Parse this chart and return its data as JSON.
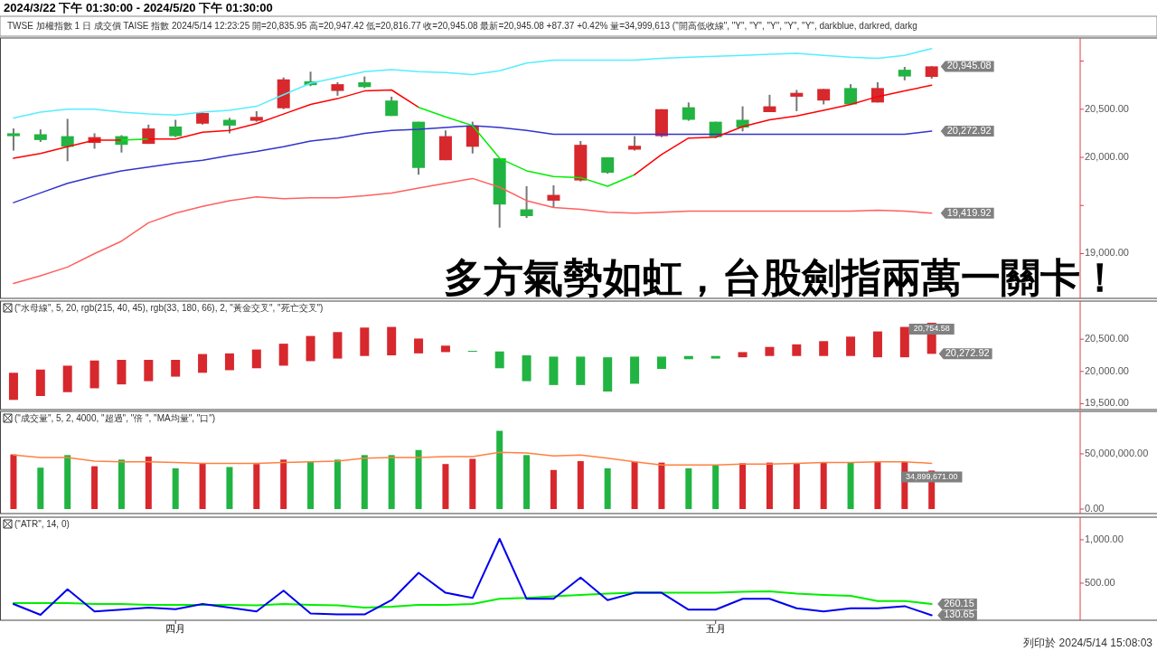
{
  "chart_data": [
    {
      "type": "candlestick",
      "title": "2024/3/22 下午 01:30:00 - 2024/5/20 下午 01:30:00",
      "subtitle": "TWSE  加權指數  1 日  成交價  TAISE  指數  2024/5/14  12:23:25  開=20,835.95  高=20,947.42  低=20,816.77  收=20,945.08  最新=20,945.08  +87.37  +0.42%  量=34,999,613  (\"開高低收線\", \"Y\", \"Y\", \"Y\", \"Y\", \"Y\", darkblue, darkred, darkg",
      "categories": [
        null,
        null,
        null,
        null,
        null,
        null,
        null,
        null,
        null,
        null,
        null,
        null,
        null,
        null,
        null,
        null,
        null,
        null,
        null,
        null,
        null,
        null,
        null,
        null,
        null,
        null,
        null,
        null,
        null,
        null,
        null,
        null,
        null,
        null,
        null,
        null,
        null,
        null,
        null,
        null
      ],
      "tick_labels": "y",
      "value_labels": [
        null,
        null,
        null,
        null,
        null,
        null,
        null,
        null,
        null,
        null,
        null,
        null,
        null,
        null,
        null,
        null,
        null,
        null,
        null,
        null,
        null,
        null,
        null,
        null,
        null,
        null,
        null,
        null,
        null,
        null,
        null,
        null,
        null,
        null,
        "20,945.08",
        null,
        null,
        null,
        null,
        null
      ],
      "ohlc": [
        [
          20250,
          20300,
          20070,
          20220
        ],
        [
          20240,
          20290,
          20160,
          20180
        ],
        [
          20220,
          20400,
          19960,
          20110
        ],
        [
          20150,
          20250,
          20090,
          20210
        ],
        [
          20220,
          20230,
          20050,
          20130
        ],
        [
          20140,
          20340,
          20140,
          20300
        ],
        [
          20320,
          20390,
          20210,
          20220
        ],
        [
          20350,
          20470,
          20340,
          20460
        ],
        [
          20390,
          20410,
          20250,
          20330
        ],
        [
          20380,
          20480,
          20370,
          20420
        ],
        [
          20510,
          20830,
          20500,
          20810
        ],
        [
          20790,
          20890,
          20740,
          20750
        ],
        [
          20690,
          20780,
          20640,
          20760
        ],
        [
          20780,
          20840,
          20720,
          20730
        ],
        [
          20590,
          20630,
          20430,
          20430
        ],
        [
          20370,
          20370,
          19820,
          19890
        ],
        [
          19970,
          20280,
          19970,
          20220
        ],
        [
          20110,
          20370,
          20040,
          20320
        ],
        [
          19990,
          19990,
          19270,
          19510
        ],
        [
          19460,
          19700,
          19370,
          19390
        ],
        [
          19550,
          19710,
          19480,
          19610
        ],
        [
          19760,
          20170,
          19750,
          20130
        ],
        [
          20000,
          20000,
          19830,
          19840
        ],
        [
          20080,
          20220,
          20070,
          20120
        ],
        [
          20220,
          20500,
          20210,
          20500
        ],
        [
          20520,
          20570,
          20380,
          20390
        ],
        [
          20370,
          20370,
          20200,
          20210
        ],
        [
          20390,
          20530,
          20270,
          20310
        ],
        [
          20470,
          20650,
          20470,
          20530
        ],
        [
          20630,
          20700,
          20480,
          20670
        ],
        [
          20590,
          20710,
          20550,
          20710
        ],
        [
          20720,
          20760,
          20550,
          20550
        ],
        [
          20570,
          20780,
          20570,
          20720
        ],
        [
          20910,
          20940,
          20800,
          20840
        ],
        [
          20835.95,
          20947.42,
          20816.77,
          20945.08
        ],
        null,
        null,
        null,
        null,
        null
      ],
      "colors": [
        "#21b442",
        "#21b442",
        "#21b442",
        "#d7282d",
        "#21b442",
        "#d7282d",
        "#21b442",
        "#d7282d",
        "#21b442",
        "#d7282d",
        "#d7282d",
        "#21b442",
        "#d7282d",
        "#21b442",
        "#21b442",
        "#21b442",
        "#d7282d",
        "#d7282d",
        "#21b442",
        "#21b442",
        "#d7282d",
        "#d7282d",
        "#21b442",
        "#d7282d",
        "#d7282d",
        "#21b442",
        "#21b442",
        "#21b442",
        "#d7282d",
        "#d7282d",
        "#d7282d",
        "#21b442",
        "#d7282d",
        "#21b442",
        "#d7282d",
        null,
        null,
        null,
        null,
        null
      ],
      "series": [
        {
          "type": "line",
          "color": "#55eeff",
          "values": [
            20410,
            20470,
            20500,
            20500,
            20470,
            20450,
            20440,
            20470,
            20490,
            20530,
            20650,
            20770,
            20830,
            20890,
            20910,
            20890,
            20880,
            20860,
            20900,
            20980,
            21010,
            21010,
            21010,
            21010,
            21030,
            21040,
            21050,
            21060,
            21070,
            21080,
            21060,
            21040,
            21030,
            21060,
            21130,
            null,
            null,
            null,
            null,
            null
          ]
        },
        {
          "type": "line",
          "color": "#3333cc",
          "values": [
            19530,
            19630,
            19730,
            19800,
            19860,
            19900,
            19940,
            19970,
            20020,
            20060,
            20110,
            20170,
            20200,
            20250,
            20280,
            20290,
            20310,
            20330,
            20310,
            20280,
            20240,
            20240,
            20240,
            20240,
            20240,
            20240,
            20240,
            20240,
            20240,
            20240,
            20240,
            20240,
            20240,
            20240,
            20272.92,
            null,
            null,
            null,
            null,
            null
          ],
          "value_labels": [
            null,
            null,
            null,
            null,
            null,
            null,
            null,
            null,
            null,
            null,
            null,
            null,
            null,
            null,
            null,
            null,
            null,
            null,
            null,
            null,
            null,
            null,
            null,
            null,
            null,
            null,
            null,
            null,
            null,
            null,
            null,
            null,
            null,
            null,
            "20,272.92",
            null,
            null,
            null,
            null,
            null
          ]
        },
        {
          "type": "line",
          "color": "#ff6060",
          "values": [
            18690,
            18770,
            18860,
            19000,
            19130,
            19320,
            19420,
            19490,
            19550,
            19590,
            19570,
            19580,
            19580,
            19600,
            19630,
            19680,
            19730,
            19780,
            19690,
            19550,
            19480,
            19460,
            19430,
            19420,
            19430,
            19440,
            19440,
            19440,
            19440,
            19440,
            19440,
            19440,
            19450,
            19440,
            19419.92,
            null,
            null,
            null,
            null,
            null
          ],
          "value_labels": [
            null,
            null,
            null,
            null,
            null,
            null,
            null,
            null,
            null,
            null,
            null,
            null,
            null,
            null,
            null,
            null,
            null,
            null,
            null,
            null,
            null,
            null,
            null,
            null,
            null,
            null,
            null,
            null,
            null,
            null,
            null,
            null,
            null,
            null,
            "19,419.92",
            null,
            null,
            null,
            null,
            null
          ]
        },
        {
          "type": "line",
          "color": "#ff0000",
          "values": [
            19990,
            20040,
            20110,
            20180,
            20180,
            null,
            null,
            null,
            null,
            null,
            null,
            null,
            null,
            null,
            null,
            null,
            null,
            null,
            null,
            null,
            null,
            null,
            null,
            null,
            null,
            null,
            null,
            null,
            null,
            null,
            null,
            null,
            null,
            null,
            null,
            null,
            null,
            null,
            null,
            null
          ]
        },
        {
          "type": "line",
          "color": "#00ee00",
          "values": [
            null,
            null,
            null,
            null,
            20180,
            20190,
            null,
            null,
            null,
            null,
            null,
            null,
            null,
            null,
            null,
            null,
            null,
            null,
            null,
            null,
            null,
            null,
            null,
            null,
            null,
            null,
            null,
            null,
            null,
            null,
            null,
            null,
            null,
            null,
            null,
            null,
            null,
            null,
            null,
            null
          ]
        },
        {
          "type": "line",
          "color": "#ff0000",
          "values": [
            null,
            null,
            null,
            null,
            null,
            20190,
            20190,
            20260,
            20280,
            20350,
            20450,
            20550,
            20610,
            20690,
            20700,
            20520,
            null,
            null,
            null,
            null,
            null,
            null,
            null,
            null,
            null,
            null,
            null,
            null,
            null,
            null,
            null,
            null,
            null,
            null,
            null,
            null,
            null,
            null,
            null,
            null
          ]
        },
        {
          "type": "line",
          "color": "#00ee00",
          "values": [
            null,
            null,
            null,
            null,
            null,
            null,
            null,
            null,
            null,
            null,
            null,
            null,
            null,
            null,
            null,
            20520,
            20420,
            20330,
            19990,
            19860,
            19800,
            19790,
            19700,
            19820,
            null,
            null,
            null,
            null,
            null,
            null,
            null,
            null,
            null,
            null,
            null,
            null,
            null,
            null,
            null,
            null
          ]
        },
        {
          "type": "line",
          "color": "#ff0000",
          "values": [
            null,
            null,
            null,
            null,
            null,
            null,
            null,
            null,
            null,
            null,
            null,
            null,
            null,
            null,
            null,
            null,
            null,
            null,
            null,
            null,
            null,
            null,
            null,
            19820,
            20030,
            20200,
            20210,
            20320,
            20390,
            20430,
            20490,
            20550,
            20630,
            20690,
            20750,
            null,
            null,
            null,
            null,
            null
          ]
        }
      ],
      "ylim": [
        18535,
        21240
      ],
      "yticks": [
        {
          "value": 21000,
          "label": null
        },
        {
          "value": 20500,
          "label": "20,500.00"
        },
        {
          "value": 20000,
          "label": "20,000.00"
        },
        {
          "value": 19500,
          "label": null
        },
        {
          "value": 19000,
          "label": "19,000.00"
        }
      ],
      "annotations": [
        "多方氣勢如虹，台股劍指兩萬一關卡！"
      ]
    },
    {
      "type": "bar",
      "title": "(\"水母線\", 5, 20, rgb(215, 40, 45), rgb(33, 180, 66), 2, \"黃金交叉\", \"死亡交叉\")",
      "categories": [
        null,
        null,
        null,
        null,
        null,
        null,
        null,
        null,
        null,
        null,
        null,
        null,
        null,
        null,
        null,
        null,
        null,
        null,
        null,
        null,
        null,
        null,
        null,
        null,
        null,
        null,
        null,
        null,
        null,
        null,
        null,
        null,
        null,
        null,
        null,
        null,
        null,
        null,
        null,
        null
      ],
      "tick_labels": "y",
      "value_labels": [
        null,
        null,
        null,
        null,
        null,
        null,
        null,
        null,
        null,
        null,
        null,
        null,
        null,
        null,
        null,
        null,
        null,
        null,
        null,
        null,
        null,
        null,
        null,
        null,
        null,
        null,
        null,
        null,
        null,
        null,
        null,
        null,
        null,
        null,
        "20,754.58",
        null,
        null,
        null,
        null,
        null
      ],
      "base": [
        19560,
        19620,
        19680,
        19740,
        19800,
        19850,
        19920,
        19980,
        20020,
        20050,
        20090,
        20160,
        20200,
        20240,
        20250,
        20280,
        20300,
        20310,
        20050,
        19850,
        19790,
        19790,
        19690,
        19810,
        20040,
        20190,
        20200,
        20220,
        20240,
        20240,
        20240,
        20240,
        20220,
        20220,
        20272.92,
        null,
        null,
        null,
        null,
        null
      ],
      "values": [
        420,
        410,
        410,
        430,
        380,
        330,
        260,
        290,
        260,
        290,
        340,
        390,
        410,
        440,
        440,
        230,
        100,
        10,
        260,
        400,
        440,
        440,
        530,
        420,
        190,
        50,
        40,
        80,
        140,
        180,
        230,
        300,
        400,
        470,
        481.66,
        null,
        null,
        null,
        null,
        null
      ],
      "colors": [
        "#d7282d",
        "#d7282d",
        "#d7282d",
        "#d7282d",
        "#d7282d",
        "#d7282d",
        "#d7282d",
        "#d7282d",
        "#d7282d",
        "#d7282d",
        "#d7282d",
        "#d7282d",
        "#d7282d",
        "#d7282d",
        "#d7282d",
        "#d7282d",
        "#d7282d",
        "#21b442",
        "#21b442",
        "#21b442",
        "#21b442",
        "#21b442",
        "#21b442",
        "#21b442",
        "#21b442",
        "#21b442",
        "#21b442",
        "#d7282d",
        "#d7282d",
        "#d7282d",
        "#d7282d",
        "#d7282d",
        "#d7282d",
        "#d7282d",
        "#d7282d",
        null,
        null,
        null,
        null,
        null
      ],
      "ylim": [
        19410,
        21090
      ],
      "yticks": [
        {
          "value": 20500,
          "label": "20,500.00"
        },
        {
          "value": 20000,
          "label": "20,000.00"
        },
        {
          "value": 19500,
          "label": "19,500.00"
        }
      ],
      "annotations": [
        "20,272.92"
      ]
    },
    {
      "type": "bar",
      "title": "(\"成交量\", 5, 2, 4000, \"超過\", \"倍 \", \"MA均量\", \"口\")",
      "categories": [
        null,
        null,
        null,
        null,
        null,
        null,
        null,
        null,
        null,
        null,
        null,
        null,
        null,
        null,
        null,
        null,
        null,
        null,
        null,
        null,
        null,
        null,
        null,
        null,
        null,
        null,
        null,
        null,
        null,
        null,
        null,
        null,
        null,
        null,
        null,
        null,
        null,
        null,
        null,
        null
      ],
      "tick_labels": "y",
      "series": [
        {
          "type": "bar",
          "value_labels": [
            null,
            null,
            null,
            null,
            null,
            null,
            null,
            null,
            null,
            null,
            null,
            null,
            null,
            null,
            null,
            null,
            null,
            null,
            null,
            null,
            null,
            null,
            null,
            null,
            null,
            null,
            null,
            null,
            null,
            null,
            null,
            null,
            null,
            null,
            "34,899,671.00",
            null,
            null,
            null,
            null,
            null
          ],
          "values": [
            49500000,
            37500000,
            48900000,
            38800000,
            44800000,
            47500000,
            36900000,
            41500000,
            38100000,
            40800000,
            44800000,
            42800000,
            44800000,
            48900000,
            48900000,
            53500000,
            40800000,
            45500000,
            70900000,
            48900000,
            35400000,
            43400000,
            36900000,
            42800000,
            42100000,
            36900000,
            39400000,
            41500000,
            42100000,
            41500000,
            42100000,
            42100000,
            43400000,
            42800000,
            34899671,
            null,
            null,
            null,
            null,
            null
          ],
          "colors": [
            "#d7282d",
            "#21b442",
            "#21b442",
            "#d7282d",
            "#21b442",
            "#d7282d",
            "#21b442",
            "#d7282d",
            "#21b442",
            "#d7282d",
            "#d7282d",
            "#21b442",
            "#21b442",
            "#21b442",
            "#21b442",
            "#21b442",
            "#d7282d",
            "#d7282d",
            "#21b442",
            "#21b442",
            "#d7282d",
            "#d7282d",
            "#21b442",
            "#d7282d",
            "#d7282d",
            "#21b442",
            "#21b442",
            "#d7282d",
            "#d7282d",
            "#d7282d",
            "#d7282d",
            "#21b442",
            "#d7282d",
            "#d7282d",
            "#d7282d",
            null,
            null,
            null,
            null,
            null
          ]
        },
        {
          "type": "line",
          "color": "#ff8040",
          "values": [
            48900000,
            46800000,
            46800000,
            43400000,
            42800000,
            42800000,
            42100000,
            41500000,
            41500000,
            41500000,
            42100000,
            42800000,
            43400000,
            46100000,
            46800000,
            46800000,
            47500000,
            47500000,
            51500000,
            50800000,
            48100000,
            48900000,
            46100000,
            42800000,
            39900000,
            39900000,
            39900000,
            40800000,
            40800000,
            41500000,
            42100000,
            42100000,
            42800000,
            42800000,
            41500000,
            null,
            null,
            null,
            null,
            null
          ]
        }
      ],
      "ylim": [
        -4100000,
        88500000
      ],
      "yticks": [
        {
          "value": 50000000,
          "label": "50,000,000.00"
        },
        {
          "value": 0,
          "label": "0.00"
        }
      ]
    },
    {
      "type": "line",
      "title": "(\"ATR\", 14, 0)",
      "categories": [
        null,
        null,
        null,
        null,
        null,
        null,
        "四月",
        null,
        null,
        null,
        null,
        null,
        null,
        null,
        null,
        null,
        null,
        null,
        null,
        null,
        null,
        null,
        null,
        null,
        null,
        null,
        "五月",
        null,
        null,
        null,
        null,
        null,
        null,
        null,
        null,
        null,
        null,
        null,
        null,
        null
      ],
      "series": [
        {
          "type": "line",
          "color": "#00ee00",
          "value_labels": [
            null,
            null,
            null,
            null,
            null,
            null,
            null,
            null,
            null,
            null,
            null,
            null,
            null,
            null,
            null,
            null,
            null,
            null,
            null,
            null,
            null,
            null,
            null,
            null,
            null,
            null,
            null,
            null,
            null,
            null,
            null,
            null,
            null,
            null,
            "260.15",
            null,
            null,
            null,
            null,
            null
          ],
          "values": [
            270,
            270,
            270,
            260,
            260,
            250,
            250,
            250,
            250,
            245,
            260,
            250,
            245,
            220,
            230,
            250,
            250,
            260,
            320,
            330,
            350,
            365,
            380,
            390,
            390,
            390,
            390,
            400,
            405,
            380,
            365,
            355,
            295,
            295,
            260.15,
            null,
            null,
            null,
            null,
            null
          ]
        },
        {
          "type": "line",
          "color": "#0000ee",
          "value_labels": [
            null,
            null,
            null,
            null,
            null,
            null,
            null,
            null,
            null,
            null,
            null,
            null,
            null,
            null,
            null,
            null,
            null,
            null,
            null,
            null,
            null,
            null,
            null,
            null,
            null,
            null,
            null,
            null,
            null,
            null,
            null,
            null,
            null,
            null,
            "130.65",
            null,
            null,
            null,
            null,
            null
          ],
          "values": [
            260,
            135,
            430,
            175,
            195,
            220,
            200,
            260,
            220,
            175,
            415,
            150,
            140,
            140,
            305,
            620,
            390,
            330,
            1010,
            320,
            320,
            565,
            305,
            390,
            390,
            195,
            195,
            320,
            320,
            210,
            175,
            210,
            210,
            235,
            130.65,
            null,
            null,
            null,
            null,
            null
          ]
        }
      ],
      "ylim": [
        73,
        1260
      ],
      "yticks": [
        {
          "value": 1000,
          "label": "1,000.00"
        },
        {
          "value": 500,
          "label": "500.00"
        }
      ],
      "annotations": [
        "列印於 2024/5/14 15:08:03"
      ]
    }
  ]
}
